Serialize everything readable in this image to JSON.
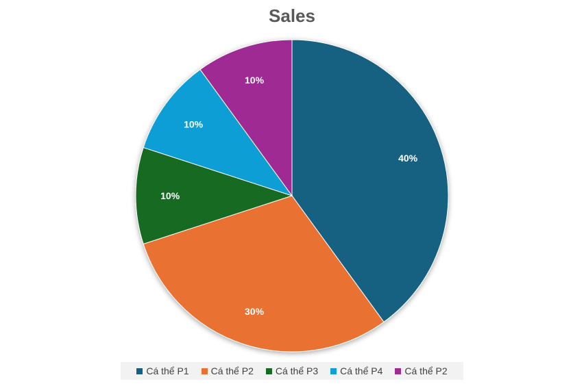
{
  "chart_data": {
    "type": "pie",
    "title": "Sales",
    "categories": [
      "Cá thể P1",
      "Cá thể P2",
      "Cá thể P3",
      "Cá thể P4",
      "Cá thể P2"
    ],
    "values": [
      40,
      30,
      10,
      10,
      10
    ],
    "labels": [
      "40%",
      "30%",
      "10%",
      "10%",
      "10%"
    ],
    "colors": [
      "#156082",
      "#E97132",
      "#196B24",
      "#0F9ED5",
      "#A02B93"
    ],
    "legend_position": "bottom"
  }
}
